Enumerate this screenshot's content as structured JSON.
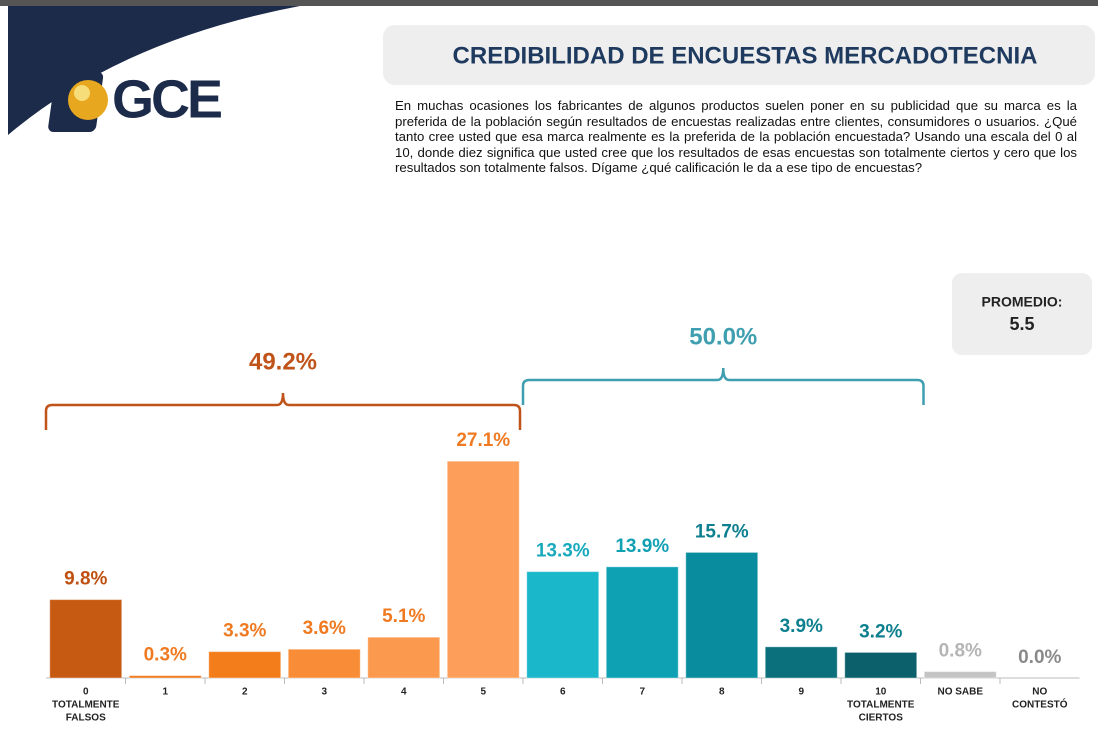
{
  "header": {
    "logo": "GCE",
    "title": "CREDIBILIDAD DE ENCUESTAS MERCADOTECNIA",
    "question": "En muchas ocasiones los fabricantes de algunos productos suelen poner en su publicidad que su marca es la preferida de la población según resultados de encuestas realizadas entre clientes, consumidores o usuarios. ¿Qué tanto cree usted que esa marca realmente es la preferida de la población encuestada? Usando una escala del 0 al 10, donde diez significa que usted cree que los resultados de esas encuestas son totalmente ciertos y cero que los resultados son totalmente falsos. Dígame ¿qué calificación le da a ese tipo de encuestas?"
  },
  "average": {
    "label": "PROMEDIO:",
    "value": 5.5
  },
  "chart_data": {
    "type": "bar",
    "categories": [
      [
        "0",
        "TOTALMENTE",
        "FALSOS"
      ],
      [
        "1"
      ],
      [
        "2"
      ],
      [
        "3"
      ],
      [
        "4"
      ],
      [
        "5"
      ],
      [
        "6"
      ],
      [
        "7"
      ],
      [
        "8"
      ],
      [
        "9"
      ],
      [
        "10",
        "TOTALMENTE",
        "CIERTOS"
      ],
      [
        "NO SABE"
      ],
      [
        "NO",
        "CONTESTÓ"
      ]
    ],
    "values": [
      9.8,
      0.3,
      3.3,
      3.6,
      5.1,
      27.1,
      13.3,
      13.9,
      15.7,
      3.9,
      3.2,
      0.8,
      0.0
    ],
    "value_labels": [
      "9.8%",
      "0.3%",
      "3.3%",
      "3.6%",
      "5.1%",
      "27.1%",
      "13.3%",
      "13.9%",
      "15.7%",
      "3.9%",
      "3.2%",
      "0.8%",
      "0.0%"
    ],
    "colors": [
      "#c75a12",
      "#f07a1f",
      "#f47d1b",
      "#f98c36",
      "#fb9a4e",
      "#fd9e5b",
      "#1ab7cb",
      "#0ea1b3",
      "#098d9e",
      "#0b707c",
      "#0c606b",
      "#c4c4c4",
      "#b0b0b0"
    ],
    "label_colors": [
      "#c0500f",
      "#ef7a22",
      "#ef7a22",
      "#ef7a22",
      "#ef7a22",
      "#ef7a22",
      "#19a9bd",
      "#12a0b3",
      "#0d7f8e",
      "#0d7f8e",
      "#0d7f8e",
      "#b5b5b5",
      "#8a8a8a"
    ],
    "groups": [
      {
        "value": 49.2,
        "value_label": "49.2%",
        "from": 0,
        "to": 5,
        "color": "#c0531a"
      },
      {
        "value": 50.0,
        "value_label": "50.0%",
        "from": 6,
        "to": 10,
        "color": "#3f9fb0"
      }
    ]
  }
}
